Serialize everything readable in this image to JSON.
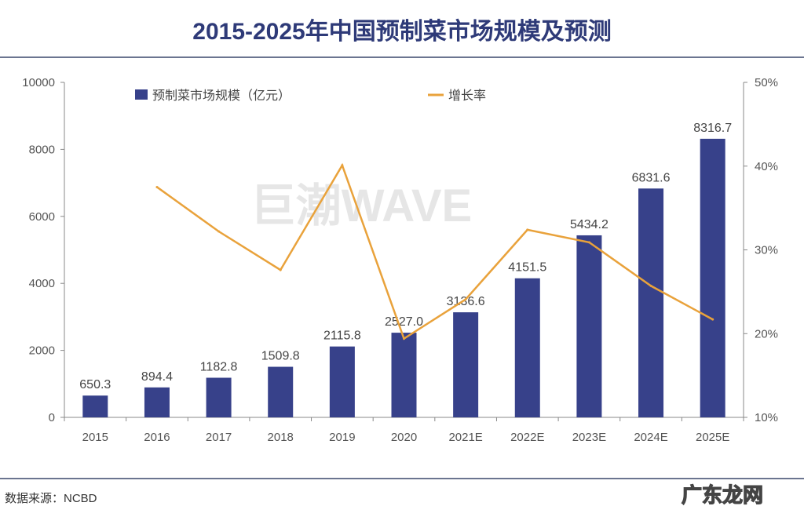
{
  "chart_data": {
    "type": "bar+line",
    "title": "2015-2025年中国预制菜市场规模及预测",
    "categories": [
      "2015",
      "2016",
      "2017",
      "2018",
      "2019",
      "2020",
      "2021E",
      "2022E",
      "2023E",
      "2024E",
      "2025E"
    ],
    "series": [
      {
        "name": "预制菜市场规模（亿元）",
        "type": "bar",
        "axis": "left",
        "color": "#37418a",
        "values": [
          650.3,
          894.4,
          1182.8,
          1509.8,
          2115.8,
          2527.0,
          3136.6,
          4151.5,
          5434.2,
          6831.6,
          8316.7
        ],
        "labels": [
          "650.3",
          "894.4",
          "1182.8",
          "1509.8",
          "2115.8",
          "2527.0",
          "3136.6",
          "4151.5",
          "5434.2",
          "6831.6",
          "8316.7"
        ]
      },
      {
        "name": "增长率",
        "type": "line",
        "axis": "right",
        "color": "#e9a23b",
        "values": [
          null,
          37.5,
          32.2,
          27.6,
          40.1,
          19.4,
          24.1,
          32.4,
          30.9,
          25.7,
          21.7
        ]
      }
    ],
    "left_axis": {
      "ylim": [
        0,
        10000
      ],
      "ticks": [
        "0",
        "2000",
        "4000",
        "6000",
        "8000",
        "10000"
      ]
    },
    "right_axis": {
      "ylim": [
        10,
        50
      ],
      "unit": "%",
      "ticks": [
        "10%",
        "20%",
        "30%",
        "40%",
        "50%"
      ]
    },
    "grid": false,
    "legend": "top"
  },
  "watermark": "巨潮WAVE",
  "source": "数据来源：NCBD",
  "logo": "广东龙网"
}
